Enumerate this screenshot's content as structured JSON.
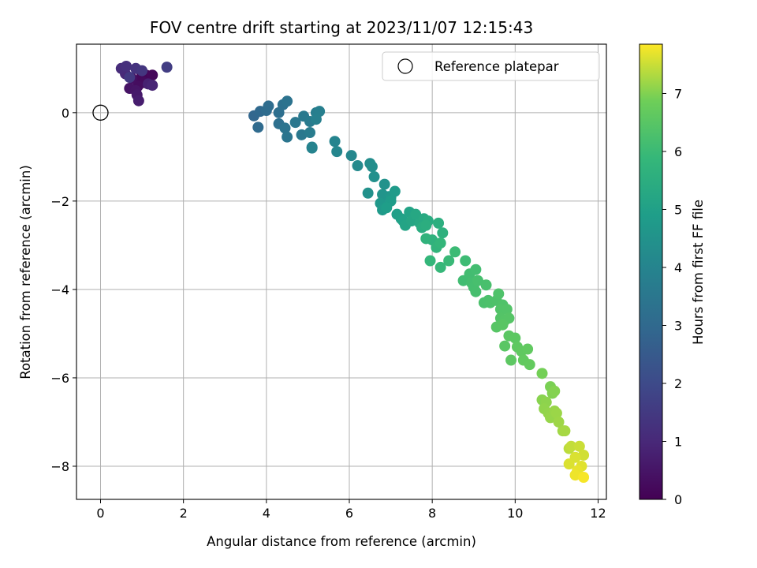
{
  "chart_data": {
    "type": "scatter",
    "title": "FOV centre drift starting at 2023/11/07 12:15:43",
    "xlabel": "Angular distance from reference (arcmin)",
    "ylabel": "Rotation from reference (arcmin)",
    "xlim": [
      -0.58,
      12.2
    ],
    "ylim": [
      -8.75,
      1.55
    ],
    "xticks": [
      0,
      2,
      4,
      6,
      8,
      10,
      12
    ],
    "yticks": [
      -8,
      -6,
      -4,
      -2,
      0
    ],
    "grid": true,
    "legend": {
      "placement": "top-right",
      "entries": [
        "Reference platepar"
      ]
    },
    "reference_point": {
      "x": 0,
      "y": 0
    },
    "colorbar": {
      "label": "Hours from first FF file",
      "range": [
        0,
        7.85
      ],
      "ticks": [
        0,
        1,
        2,
        3,
        4,
        5,
        6,
        7
      ],
      "colormap": "viridis"
    },
    "series": [
      {
        "values": [
          [
            1.0,
            0.87,
            0.1
          ],
          [
            1.1,
            0.85,
            0.12
          ],
          [
            1.25,
            0.85,
            0.15
          ],
          [
            0.95,
            0.75,
            0.2
          ],
          [
            1.05,
            0.68,
            0.25
          ],
          [
            0.9,
            0.6,
            0.3
          ],
          [
            0.75,
            0.78,
            0.35
          ],
          [
            0.7,
            0.55,
            0.45
          ],
          [
            0.85,
            0.5,
            0.5
          ],
          [
            0.88,
            0.4,
            0.6
          ],
          [
            0.92,
            0.27,
            0.7
          ],
          [
            1.15,
            0.65,
            0.8
          ],
          [
            1.25,
            0.62,
            0.9
          ],
          [
            0.6,
            0.88,
            1.0
          ],
          [
            0.5,
            1.0,
            1.1
          ],
          [
            0.62,
            1.05,
            1.2
          ],
          [
            0.85,
            1.0,
            1.3
          ],
          [
            1.0,
            0.95,
            1.4
          ],
          [
            1.6,
            1.03,
            1.6
          ],
          [
            0.7,
            0.8,
            1.5
          ],
          [
            3.7,
            -0.07,
            2.9
          ],
          [
            3.85,
            0.03,
            3.0
          ],
          [
            3.8,
            -0.33,
            3.05
          ],
          [
            4.0,
            0.05,
            3.1
          ],
          [
            4.05,
            0.15,
            3.15
          ],
          [
            4.3,
            0.0,
            3.2
          ],
          [
            4.3,
            -0.25,
            3.25
          ],
          [
            4.4,
            0.18,
            3.3
          ],
          [
            4.5,
            0.26,
            3.35
          ],
          [
            4.45,
            -0.35,
            3.4
          ],
          [
            4.5,
            -0.55,
            3.45
          ],
          [
            4.7,
            -0.22,
            3.5
          ],
          [
            4.85,
            -0.5,
            3.55
          ],
          [
            4.9,
            -0.08,
            3.6
          ],
          [
            5.05,
            -0.2,
            3.65
          ],
          [
            5.05,
            -0.45,
            3.7
          ],
          [
            5.2,
            0.0,
            3.75
          ],
          [
            5.28,
            0.03,
            3.8
          ],
          [
            5.2,
            -0.15,
            3.85
          ],
          [
            5.1,
            -0.78,
            3.9
          ],
          [
            5.1,
            -0.8,
            3.95
          ],
          [
            5.65,
            -0.65,
            4.0
          ],
          [
            5.7,
            -0.88,
            4.05
          ],
          [
            6.05,
            -0.97,
            4.1
          ],
          [
            6.2,
            -1.2,
            4.2
          ],
          [
            6.5,
            -1.15,
            4.3
          ],
          [
            6.55,
            -1.22,
            4.35
          ],
          [
            6.6,
            -1.45,
            4.4
          ],
          [
            6.45,
            -1.82,
            4.45
          ],
          [
            6.85,
            -1.62,
            4.5
          ],
          [
            6.8,
            -1.85,
            4.55
          ],
          [
            6.95,
            -1.9,
            4.6
          ],
          [
            7.0,
            -1.92,
            4.65
          ],
          [
            6.75,
            -2.05,
            4.7
          ],
          [
            6.8,
            -2.2,
            4.75
          ],
          [
            7.1,
            -1.78,
            4.8
          ],
          [
            7.0,
            -2.0,
            4.85
          ],
          [
            6.9,
            -2.15,
            4.9
          ],
          [
            7.15,
            -2.3,
            4.95
          ],
          [
            7.25,
            -2.4,
            5.0
          ],
          [
            7.3,
            -2.45,
            5.05
          ],
          [
            7.45,
            -2.25,
            5.1
          ],
          [
            7.35,
            -2.55,
            5.15
          ],
          [
            7.5,
            -2.45,
            5.2
          ],
          [
            7.6,
            -2.3,
            5.25
          ],
          [
            7.7,
            -2.5,
            5.3
          ],
          [
            7.8,
            -2.4,
            5.35
          ],
          [
            7.9,
            -2.45,
            5.4
          ],
          [
            7.75,
            -2.6,
            5.45
          ],
          [
            7.85,
            -2.55,
            5.5
          ],
          [
            8.15,
            -2.5,
            5.55
          ],
          [
            8.25,
            -2.72,
            5.6
          ],
          [
            8.0,
            -2.88,
            5.65
          ],
          [
            7.85,
            -2.85,
            5.7
          ],
          [
            8.1,
            -3.05,
            5.75
          ],
          [
            8.2,
            -2.95,
            5.8
          ],
          [
            7.95,
            -3.35,
            5.85
          ],
          [
            8.2,
            -3.5,
            5.9
          ],
          [
            8.4,
            -3.35,
            5.95
          ],
          [
            8.55,
            -3.15,
            6.0
          ],
          [
            8.8,
            -3.35,
            6.05
          ],
          [
            8.75,
            -3.8,
            6.1
          ],
          [
            8.9,
            -3.65,
            6.12
          ],
          [
            9.05,
            -3.55,
            6.14
          ],
          [
            8.95,
            -3.85,
            6.16
          ],
          [
            9.0,
            -3.95,
            6.18
          ],
          [
            9.05,
            -4.05,
            6.2
          ],
          [
            9.1,
            -3.8,
            6.22
          ],
          [
            9.3,
            -3.9,
            6.24
          ],
          [
            9.25,
            -4.3,
            6.26
          ],
          [
            9.35,
            -4.25,
            6.28
          ],
          [
            9.4,
            -4.3,
            6.3
          ],
          [
            9.55,
            -4.25,
            6.32
          ],
          [
            9.6,
            -4.1,
            6.34
          ],
          [
            9.7,
            -4.35,
            6.36
          ],
          [
            9.65,
            -4.45,
            6.38
          ],
          [
            9.8,
            -4.45,
            6.4
          ],
          [
            9.65,
            -4.65,
            6.42
          ],
          [
            9.75,
            -4.7,
            6.44
          ],
          [
            9.85,
            -4.65,
            6.46
          ],
          [
            9.55,
            -4.85,
            6.48
          ],
          [
            9.7,
            -4.8,
            6.5
          ],
          [
            9.75,
            -5.28,
            6.52
          ],
          [
            9.85,
            -5.05,
            6.54
          ],
          [
            10.0,
            -5.1,
            6.56
          ],
          [
            9.9,
            -5.6,
            6.58
          ],
          [
            10.05,
            -5.3,
            6.6
          ],
          [
            10.15,
            -5.4,
            6.62
          ],
          [
            10.3,
            -5.35,
            6.64
          ],
          [
            10.2,
            -5.6,
            6.66
          ],
          [
            10.35,
            -5.7,
            6.68
          ],
          [
            10.65,
            -5.9,
            6.9
          ],
          [
            10.85,
            -6.2,
            6.95
          ],
          [
            10.9,
            -6.35,
            7.0
          ],
          [
            10.95,
            -6.3,
            7.02
          ],
          [
            10.65,
            -6.5,
            7.05
          ],
          [
            10.75,
            -6.55,
            7.08
          ],
          [
            10.7,
            -6.7,
            7.1
          ],
          [
            10.8,
            -6.8,
            7.12
          ],
          [
            10.85,
            -6.9,
            7.14
          ],
          [
            10.95,
            -6.75,
            7.16
          ],
          [
            11.0,
            -6.8,
            7.18
          ],
          [
            11.05,
            -7.0,
            7.2
          ],
          [
            11.15,
            -7.2,
            7.22
          ],
          [
            11.2,
            -7.2,
            7.25
          ],
          [
            11.3,
            -7.6,
            7.4
          ],
          [
            11.35,
            -7.55,
            7.45
          ],
          [
            11.55,
            -7.55,
            7.5
          ],
          [
            11.65,
            -7.75,
            7.55
          ],
          [
            11.45,
            -7.8,
            7.6
          ],
          [
            11.3,
            -7.95,
            7.62
          ],
          [
            11.6,
            -8.0,
            7.65
          ],
          [
            11.5,
            -8.1,
            7.7
          ],
          [
            11.45,
            -8.2,
            7.75
          ],
          [
            11.65,
            -8.25,
            7.8
          ]
        ]
      }
    ]
  }
}
